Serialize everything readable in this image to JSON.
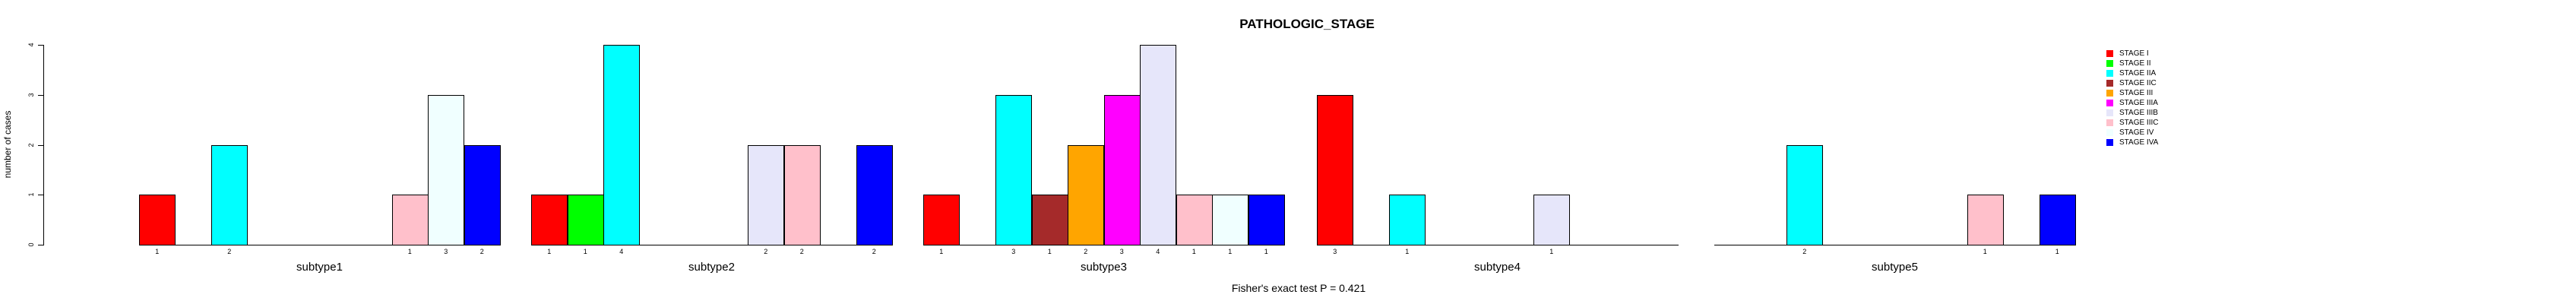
{
  "title": "PATHOLOGIC_STAGE",
  "footer": "Fisher's exact test P = 0.421",
  "y_axis": {
    "label": "number of cases",
    "ticks": [
      "0",
      "1",
      "2",
      "3",
      "4"
    ]
  },
  "x_groups": [
    "subtype1",
    "subtype2",
    "subtype3",
    "subtype4",
    "subtype5"
  ],
  "legend": {
    "entries": [
      "STAGE I",
      "STAGE II",
      "STAGE IIA",
      "STAGE IIC",
      "STAGE III",
      "STAGE IIIA",
      "STAGE IIIB",
      "STAGE IIIC",
      "STAGE IV",
      "STAGE IVA"
    ]
  },
  "colors": {
    "STAGE I": "#FF0000",
    "STAGE II": "#00FF00",
    "STAGE IIA": "#00FFFF",
    "STAGE IIC": "#A52A2A",
    "STAGE III": "#FFA500",
    "STAGE IIIA": "#FF00FF",
    "STAGE IIIB": "#E6E6FA",
    "STAGE IIIC": "#FFC0CB",
    "STAGE IV": "#F0FFFF",
    "STAGE IVA": "#0000FF"
  },
  "chart_data": {
    "type": "bar",
    "title": "PATHOLOGIC_STAGE",
    "xlabel": "",
    "ylabel": "number of cases",
    "ylim": [
      0,
      4
    ],
    "grid": false,
    "legend_position": "right",
    "bar_value_labels_below_axis": true,
    "zero_bars_drawn_as_flat_line": true,
    "annotation": "Fisher's exact test P = 0.421",
    "categories": [
      "subtype1",
      "subtype2",
      "subtype3",
      "subtype4",
      "subtype5"
    ],
    "series": [
      {
        "name": "STAGE I",
        "color": "#FF0000",
        "values": [
          1,
          1,
          1,
          3,
          0
        ]
      },
      {
        "name": "STAGE II",
        "color": "#00FF00",
        "values": [
          0,
          1,
          0,
          0,
          0
        ]
      },
      {
        "name": "STAGE IIA",
        "color": "#00FFFF",
        "values": [
          2,
          4,
          3,
          1,
          2
        ]
      },
      {
        "name": "STAGE IIC",
        "color": "#A52A2A",
        "values": [
          0,
          0,
          1,
          0,
          0
        ]
      },
      {
        "name": "STAGE III",
        "color": "#FFA500",
        "values": [
          0,
          0,
          2,
          0,
          0
        ]
      },
      {
        "name": "STAGE IIIA",
        "color": "#FF00FF",
        "values": [
          0,
          0,
          3,
          0,
          0
        ]
      },
      {
        "name": "STAGE IIIB",
        "color": "#E6E6FA",
        "values": [
          0,
          2,
          4,
          1,
          0
        ]
      },
      {
        "name": "STAGE IIIC",
        "color": "#FFC0CB",
        "values": [
          1,
          2,
          1,
          0,
          1
        ]
      },
      {
        "name": "STAGE IV",
        "color": "#F0FFFF",
        "values": [
          3,
          0,
          1,
          0,
          0
        ]
      },
      {
        "name": "STAGE IVA",
        "color": "#0000FF",
        "values": [
          2,
          2,
          1,
          0,
          1
        ]
      }
    ]
  }
}
